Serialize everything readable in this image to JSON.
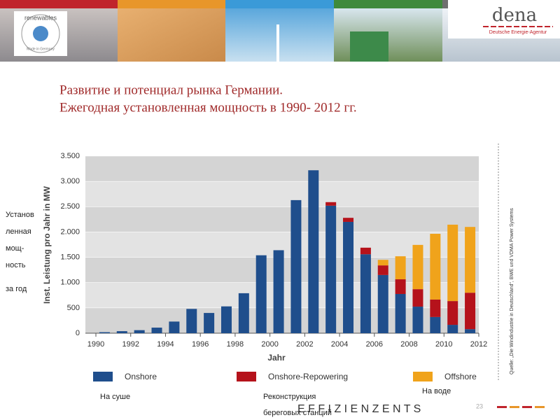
{
  "header": {
    "logo_text": "renewables",
    "logo_subtext": "Made in Germany",
    "brand": "dena",
    "brand_subtitle": "Deutsche Energie-Agentur"
  },
  "slide_title": [
    "Развитие и потенциал рынка Германии.",
    "Ежегодная установленная мощность в 1990- 2012 гг."
  ],
  "annotations": {
    "left": [
      "Установ",
      "ленная",
      "мощ-",
      "ность",
      "за год"
    ],
    "onshore": "На суше",
    "repowering": [
      "Реконструкция",
      "береговых станций"
    ],
    "offshore": "На воде"
  },
  "source": "Quelle: „Die Windindustrie in Deutschland“, BWE und VDMA Power Systems",
  "footer": {
    "text": "E F F I Z I E N Z  E N T S",
    "page": "23"
  },
  "chart_data": {
    "type": "stacked_bar",
    "x_label": "Jahr",
    "y_label": "Inst. Leistung pro Jahr in MW",
    "x": [
      1990,
      1991,
      1992,
      1993,
      1994,
      1995,
      1996,
      1997,
      1998,
      1999,
      2000,
      2001,
      2002,
      2003,
      2004,
      2005,
      2006,
      2007,
      2008,
      2009,
      2010,
      2011
    ],
    "series": [
      {
        "name": "Onshore",
        "color": "#1f4e8c",
        "values": [
          20,
          40,
          60,
          110,
          230,
          480,
          400,
          530,
          790,
          1540,
          1640,
          2630,
          3220,
          2520,
          2200,
          1560,
          1150,
          775,
          525,
          320,
          165,
          80
        ]
      },
      {
        "name": "Onshore-Repowering",
        "color": "#b5121b",
        "values": [
          0,
          0,
          0,
          0,
          0,
          0,
          0,
          0,
          0,
          0,
          0,
          0,
          0,
          70,
          80,
          130,
          190,
          290,
          345,
          345,
          470,
          720
        ]
      },
      {
        "name": "Offshore",
        "color": "#f0a31b",
        "values": [
          0,
          0,
          0,
          0,
          0,
          0,
          0,
          0,
          0,
          0,
          0,
          0,
          0,
          0,
          0,
          0,
          110,
          455,
          875,
          1300,
          1510,
          1300
        ]
      }
    ],
    "xlim": [
      1990,
      2012
    ],
    "xticks": [
      1990,
      1992,
      1994,
      1996,
      1998,
      2000,
      2002,
      2004,
      2006,
      2008,
      2010,
      2012
    ],
    "ylim": [
      0,
      3500
    ],
    "yticks": [
      0,
      500,
      {
        "value": 1000,
        "label": "1.000"
      },
      {
        "value": 1500,
        "label": "1.500"
      },
      {
        "value": 2000,
        "label": "2.000"
      },
      {
        "value": 2500,
        "label": "2.500"
      },
      {
        "value": 3000,
        "label": "3.000"
      },
      {
        "value": 3500,
        "label": "3.500"
      }
    ],
    "grid": true,
    "legend": "bottom"
  }
}
